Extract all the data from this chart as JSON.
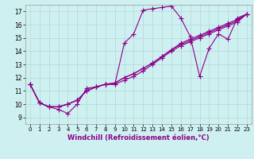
{
  "xlabel": "Windchill (Refroidissement éolien,°C)",
  "bg_color": "#cff0f0",
  "line_color": "#8b008b",
  "xlim": [
    -0.5,
    23.5
  ],
  "ylim": [
    8.5,
    17.5
  ],
  "xticks": [
    0,
    1,
    2,
    3,
    4,
    5,
    6,
    7,
    8,
    9,
    10,
    11,
    12,
    13,
    14,
    15,
    16,
    17,
    18,
    19,
    20,
    21,
    22,
    23
  ],
  "yticks": [
    9,
    10,
    11,
    12,
    13,
    14,
    15,
    16,
    17
  ],
  "lines": [
    [
      11.5,
      10.1,
      9.8,
      9.6,
      9.3,
      10.0,
      11.2,
      11.3,
      11.5,
      11.5,
      14.6,
      15.3,
      17.1,
      17.2,
      17.3,
      17.4,
      16.5,
      15.1,
      12.1,
      14.2,
      15.3,
      14.9,
      16.5,
      16.8
    ],
    [
      11.5,
      10.1,
      9.8,
      9.8,
      10.0,
      10.3,
      11.0,
      11.3,
      11.5,
      11.5,
      11.8,
      12.1,
      12.5,
      13.0,
      13.5,
      14.0,
      14.4,
      14.7,
      15.0,
      15.3,
      15.6,
      15.9,
      16.2,
      16.8
    ],
    [
      11.5,
      10.1,
      9.8,
      9.8,
      10.0,
      10.3,
      11.0,
      11.3,
      11.5,
      11.6,
      12.0,
      12.3,
      12.7,
      13.1,
      13.6,
      14.1,
      14.5,
      14.8,
      15.1,
      15.4,
      15.7,
      16.0,
      16.3,
      16.8
    ],
    [
      11.5,
      10.1,
      9.8,
      9.8,
      10.0,
      10.3,
      11.0,
      11.3,
      11.5,
      11.6,
      12.0,
      12.3,
      12.7,
      13.1,
      13.6,
      14.1,
      14.6,
      14.9,
      15.2,
      15.5,
      15.8,
      16.1,
      16.4,
      16.8
    ]
  ],
  "grid_color": "#b0d8d8",
  "marker": "+",
  "markersize": 4,
  "linewidth": 0.8
}
